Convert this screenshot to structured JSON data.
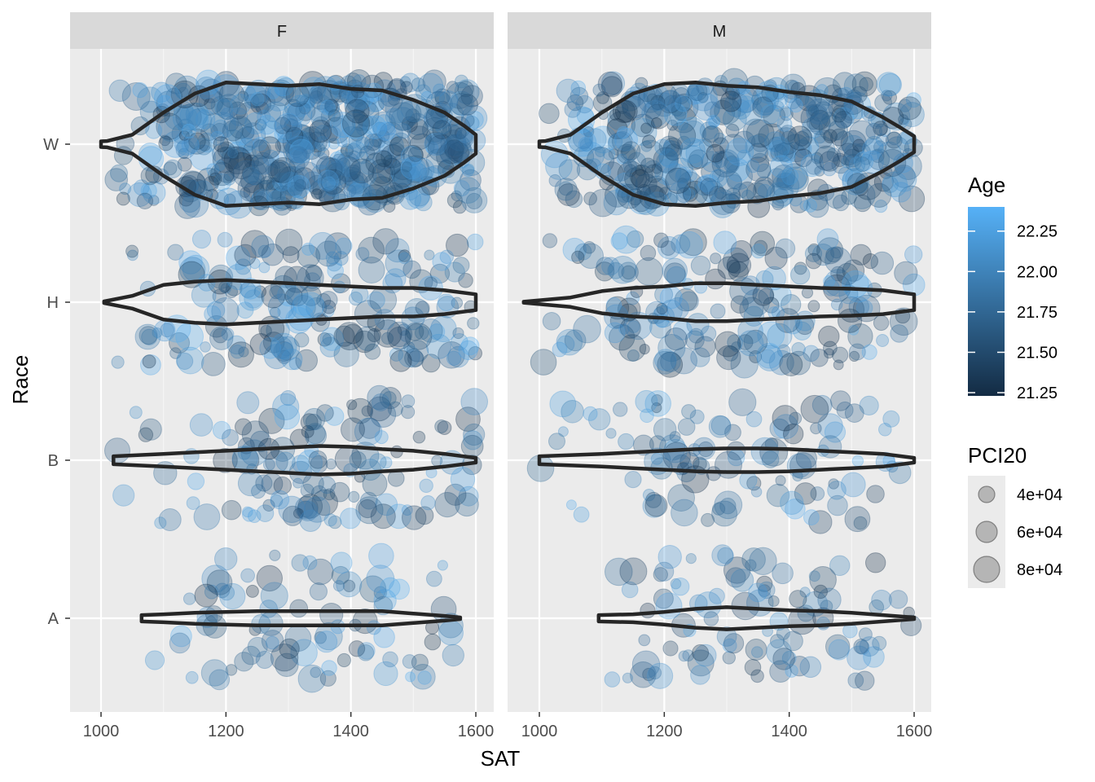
{
  "chart_data": {
    "type": "scatter",
    "layers": [
      "jittered points",
      "violin"
    ],
    "facets": [
      "F",
      "M"
    ],
    "xlabel": "SAT",
    "ylabel": "Race",
    "x_ticks": [
      1000,
      1200,
      1400,
      1600
    ],
    "x_tick_labels": [
      "1000",
      "1200",
      "1400",
      "1600"
    ],
    "xlim": [
      950,
      1630
    ],
    "categories": [
      "A",
      "B",
      "H",
      "W"
    ],
    "grid": true,
    "legend_position": "right",
    "color_legend": {
      "title": "Age",
      "ticks": [
        "22.25",
        "22.00",
        "21.75",
        "21.50",
        "21.25"
      ],
      "tick_values": [
        22.25,
        22.0,
        21.75,
        21.5,
        21.25
      ],
      "range": [
        21.23,
        22.4
      ],
      "low_color": "#132B43",
      "high_color": "#56B1F7"
    },
    "size_legend": {
      "title": "PCI20",
      "labels": [
        "4e+04",
        "6e+04",
        "8e+04"
      ],
      "values": [
        40000,
        60000,
        80000
      ]
    },
    "point_alpha": 0.3,
    "violins": {
      "F": {
        "W": {
          "min": 1000,
          "max": 1600,
          "x": [
            1000,
            1010,
            1050,
            1100,
            1150,
            1200,
            1250,
            1300,
            1350,
            1400,
            1450,
            1500,
            1550,
            1580,
            1600
          ],
          "halfwidth": [
            0.018,
            0.02,
            0.06,
            0.2,
            0.32,
            0.39,
            0.38,
            0.37,
            0.38,
            0.35,
            0.34,
            0.28,
            0.2,
            0.12,
            0.06
          ]
        },
        "H": {
          "min": 1005,
          "max": 1600,
          "x": [
            1005,
            1050,
            1100,
            1150,
            1200,
            1250,
            1300,
            1350,
            1400,
            1450,
            1500,
            1550,
            1600
          ],
          "halfwidth": [
            0.005,
            0.04,
            0.11,
            0.13,
            0.14,
            0.13,
            0.12,
            0.11,
            0.1,
            0.09,
            0.09,
            0.075,
            0.05
          ]
        },
        "B": {
          "min": 1020,
          "max": 1600,
          "x": [
            1020,
            1100,
            1150,
            1200,
            1250,
            1300,
            1350,
            1400,
            1450,
            1500,
            1550,
            1600
          ],
          "halfwidth": [
            0.025,
            0.04,
            0.05,
            0.06,
            0.07,
            0.08,
            0.09,
            0.085,
            0.07,
            0.06,
            0.04,
            0.015
          ]
        },
        "A": {
          "min": 1065,
          "max": 1575,
          "x": [
            1065,
            1100,
            1150,
            1200,
            1250,
            1300,
            1350,
            1400,
            1450,
            1500,
            1550,
            1575
          ],
          "halfwidth": [
            0.02,
            0.025,
            0.035,
            0.04,
            0.045,
            0.045,
            0.045,
            0.045,
            0.045,
            0.03,
            0.015,
            0.005
          ]
        }
      },
      "M": {
        "W": {
          "min": 1000,
          "max": 1600,
          "x": [
            1000,
            1010,
            1050,
            1100,
            1150,
            1200,
            1250,
            1300,
            1350,
            1400,
            1450,
            1500,
            1550,
            1580,
            1600
          ],
          "halfwidth": [
            0.018,
            0.02,
            0.06,
            0.2,
            0.32,
            0.38,
            0.39,
            0.37,
            0.36,
            0.33,
            0.31,
            0.27,
            0.17,
            0.1,
            0.05
          ]
        },
        "H": {
          "min": 975,
          "max": 1600,
          "x": [
            975,
            1050,
            1100,
            1150,
            1200,
            1250,
            1300,
            1350,
            1400,
            1450,
            1500,
            1550,
            1600
          ],
          "halfwidth": [
            0.003,
            0.03,
            0.07,
            0.09,
            0.1,
            0.12,
            0.12,
            0.11,
            0.1,
            0.09,
            0.085,
            0.075,
            0.05
          ]
        },
        "B": {
          "min": 1000,
          "max": 1600,
          "x": [
            1000,
            1100,
            1150,
            1200,
            1250,
            1300,
            1350,
            1400,
            1450,
            1500,
            1550,
            1600
          ],
          "halfwidth": [
            0.025,
            0.04,
            0.05,
            0.06,
            0.07,
            0.075,
            0.075,
            0.07,
            0.06,
            0.05,
            0.04,
            0.015
          ]
        },
        "A": {
          "min": 1095,
          "max": 1600,
          "x": [
            1095,
            1150,
            1200,
            1250,
            1300,
            1350,
            1400,
            1450,
            1500,
            1550,
            1600
          ],
          "halfwidth": [
            0.02,
            0.025,
            0.04,
            0.06,
            0.07,
            0.06,
            0.05,
            0.045,
            0.035,
            0.02,
            0.005
          ]
        }
      }
    },
    "point_groups": {
      "F": {
        "W": {
          "count": 560,
          "sat_range": [
            1000,
            1600
          ],
          "density": [
            [
              1000,
              0.05
            ],
            [
              1100,
              0.5
            ],
            [
              1200,
              1.0
            ],
            [
              1300,
              1.0
            ],
            [
              1400,
              1.0
            ],
            [
              1500,
              0.95
            ],
            [
              1600,
              0.7
            ]
          ]
        },
        "H": {
          "count": 200,
          "sat_range": [
            1010,
            1600
          ],
          "density": [
            [
              1010,
              0.1
            ],
            [
              1100,
              0.6
            ],
            [
              1200,
              1.0
            ],
            [
              1300,
              0.9
            ],
            [
              1400,
              0.85
            ],
            [
              1500,
              0.85
            ],
            [
              1600,
              0.5
            ]
          ]
        },
        "B": {
          "count": 140,
          "sat_range": [
            1020,
            1600
          ],
          "density": [
            [
              1020,
              0.3
            ],
            [
              1150,
              0.6
            ],
            [
              1300,
              1.0
            ],
            [
              1400,
              0.9
            ],
            [
              1500,
              0.6
            ],
            [
              1600,
              0.3
            ]
          ]
        },
        "A": {
          "count": 90,
          "sat_range": [
            1065,
            1575
          ],
          "density": [
            [
              1065,
              0.3
            ],
            [
              1200,
              0.8
            ],
            [
              1300,
              1.0
            ],
            [
              1400,
              1.0
            ],
            [
              1500,
              0.6
            ],
            [
              1575,
              0.3
            ]
          ]
        }
      },
      "M": {
        "W": {
          "count": 460,
          "sat_range": [
            1000,
            1600
          ],
          "density": [
            [
              1000,
              0.05
            ],
            [
              1100,
              0.5
            ],
            [
              1200,
              1.0
            ],
            [
              1300,
              1.0
            ],
            [
              1400,
              0.95
            ],
            [
              1500,
              0.9
            ],
            [
              1600,
              0.6
            ]
          ]
        },
        "H": {
          "count": 190,
          "sat_range": [
            975,
            1600
          ],
          "density": [
            [
              975,
              0.05
            ],
            [
              1100,
              0.5
            ],
            [
              1250,
              1.0
            ],
            [
              1350,
              0.9
            ],
            [
              1450,
              0.85
            ],
            [
              1550,
              0.8
            ],
            [
              1600,
              0.5
            ]
          ]
        },
        "B": {
          "count": 110,
          "sat_range": [
            1000,
            1600
          ],
          "density": [
            [
              1000,
              0.3
            ],
            [
              1150,
              0.6
            ],
            [
              1250,
              1.0
            ],
            [
              1400,
              0.9
            ],
            [
              1500,
              0.6
            ],
            [
              1600,
              0.3
            ]
          ]
        },
        "A": {
          "count": 100,
          "sat_range": [
            1095,
            1600
          ],
          "density": [
            [
              1095,
              0.3
            ],
            [
              1200,
              0.7
            ],
            [
              1300,
              1.0
            ],
            [
              1400,
              0.9
            ],
            [
              1500,
              0.6
            ],
            [
              1600,
              0.4
            ]
          ]
        }
      }
    }
  }
}
